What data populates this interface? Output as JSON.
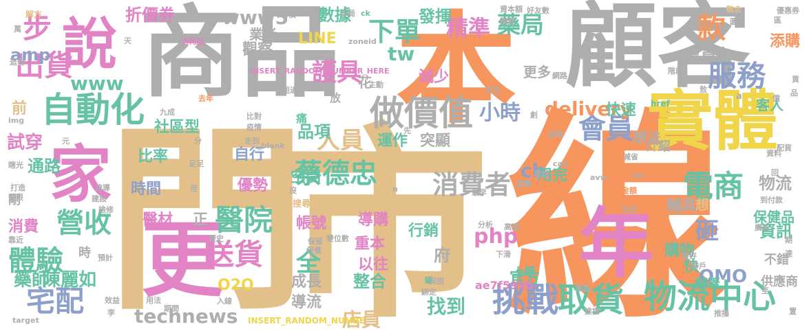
{
  "colors": {
    "tan": "#e3c089",
    "gray": "#aeaeae",
    "orange": "#f6955e",
    "pink": "#e283c5",
    "green": "#66c2a5",
    "yellow": "#f0d54a",
    "blue": "#8da0cb",
    "lime": "#a6d854"
  },
  "words": [
    {
      "text": "門",
      "color": "tan"
    },
    {
      "text": "市",
      "color": "tan"
    },
    {
      "text": "線",
      "color": "orange"
    },
    {
      "text": "商品",
      "color": "gray"
    },
    {
      "text": "本",
      "color": "orange"
    },
    {
      "text": "顧客",
      "color": "gray"
    },
    {
      "text": "更",
      "color": "pink"
    },
    {
      "text": "年",
      "color": "pink"
    },
    {
      "text": "實體",
      "color": "yellow"
    },
    {
      "text": "家",
      "color": "pink"
    },
    {
      "text": "說",
      "color": "pink"
    },
    {
      "text": "自動化",
      "color": "green"
    },
    {
      "text": "服務",
      "color": "blue"
    },
    {
      "text": "做價值",
      "color": "gray"
    },
    {
      "text": "電商",
      "color": "green"
    },
    {
      "text": "物流中心",
      "color": "green"
    },
    {
      "text": "挑戰",
      "color": "blue"
    },
    {
      "text": "取貨",
      "color": "green"
    },
    {
      "text": "蔡德忠",
      "color": "green"
    },
    {
      "text": "送貨",
      "color": "pink"
    },
    {
      "text": "醫院",
      "color": "green"
    },
    {
      "text": "宅配",
      "color": "blue"
    },
    {
      "text": "體驗",
      "color": "green"
    },
    {
      "text": "營收",
      "color": "green"
    },
    {
      "text": "出貨",
      "color": "pink"
    },
    {
      "text": "步",
      "color": "pink"
    },
    {
      "text": "會員",
      "color": "blue"
    },
    {
      "text": "消費者",
      "color": "gray"
    },
    {
      "text": "下單",
      "color": "green"
    },
    {
      "text": "精準",
      "color": "pink"
    },
    {
      "text": "藥局",
      "color": "green"
    },
    {
      "text": "款",
      "color": "orange"
    },
    {
      "text": "護具",
      "color": "pink"
    },
    {
      "text": "人員",
      "color": "tan"
    },
    {
      "text": "小時",
      "color": "blue"
    },
    {
      "text": "www5",
      "color": "gray"
    },
    {
      "text": "www",
      "color": "green"
    },
    {
      "text": "technews",
      "color": "gray"
    },
    {
      "text": "delivery",
      "color": "orange"
    },
    {
      "text": "砸",
      "color": "blue"
    },
    {
      "text": "全",
      "color": "green"
    },
    {
      "text": "物流",
      "color": "gray"
    },
    {
      "text": "資訊",
      "color": "green"
    },
    {
      "text": "O2O",
      "color": "yellow"
    },
    {
      "text": "OMO",
      "color": "blue"
    },
    {
      "text": "店員",
      "color": "tan"
    },
    {
      "text": "找到",
      "color": "green"
    },
    {
      "text": "陳麗如",
      "color": "green"
    },
    {
      "text": "藥師",
      "color": "green"
    },
    {
      "text": "折價券",
      "color": "pink"
    },
    {
      "text": "發揮",
      "color": "green"
    },
    {
      "text": "數據",
      "color": "green"
    },
    {
      "text": "amp",
      "color": "blue"
    },
    {
      "text": "LINE",
      "color": "yellow"
    },
    {
      "text": "cb",
      "color": "blue"
    },
    {
      "text": "php",
      "color": "pink"
    },
    {
      "text": "tw",
      "color": "green"
    },
    {
      "text": "試穿",
      "color": "pink"
    },
    {
      "text": "通路",
      "color": "green"
    },
    {
      "text": "社區型",
      "color": "green"
    },
    {
      "text": "品項",
      "color": "green"
    },
    {
      "text": "突顯",
      "color": "gray"
    },
    {
      "text": "運作",
      "color": "green"
    },
    {
      "text": "用完",
      "color": "green"
    },
    {
      "text": "自行",
      "color": "blue"
    },
    {
      "text": "比率",
      "color": "green"
    },
    {
      "text": "時間",
      "color": "blue"
    },
    {
      "text": "優勢",
      "color": "pink"
    },
    {
      "text": "醫材",
      "color": "pink"
    },
    {
      "text": "帳號",
      "color": "pink"
    },
    {
      "text": "導購",
      "color": "pink"
    },
    {
      "text": "重本",
      "color": "pink"
    },
    {
      "text": "以往",
      "color": "pink"
    },
    {
      "text": "整合",
      "color": "green"
    },
    {
      "text": "成長",
      "color": "gray"
    },
    {
      "text": "導流",
      "color": "gray"
    },
    {
      "text": "行銷",
      "color": "green"
    },
    {
      "text": "府",
      "color": "gray"
    },
    {
      "text": "官方",
      "color": "green"
    },
    {
      "text": "購物",
      "color": "green"
    },
    {
      "text": "快",
      "color": "green"
    },
    {
      "text": "輔具",
      "color": "gray"
    },
    {
      "text": "空間",
      "color": "green"
    },
    {
      "text": "推",
      "color": "tan"
    },
    {
      "text": "正",
      "color": "gray"
    },
    {
      "text": "前",
      "color": "tan"
    },
    {
      "text": "觀察",
      "color": "gray"
    },
    {
      "text": "業者",
      "color": "gray"
    },
    {
      "text": "花",
      "color": "gray"
    },
    {
      "text": "減少",
      "color": "pink"
    },
    {
      "text": "更多",
      "color": "gray"
    },
    {
      "text": "快速",
      "color": "green"
    },
    {
      "text": "會員卡",
      "color": "gray"
    },
    {
      "text": "客人",
      "color": "green"
    },
    {
      "text": "添購",
      "color": "orange"
    },
    {
      "text": "辦法",
      "color": "gray"
    },
    {
      "text": "介紹",
      "color": "gray"
    },
    {
      "text": "想",
      "color": "tan"
    },
    {
      "text": "保健品",
      "color": "green"
    },
    {
      "text": "供應商",
      "color": "gray"
    },
    {
      "text": "不錯",
      "color": "gray"
    },
    {
      "text": "藤蓋",
      "color": "green"
    },
    {
      "text": "上網",
      "color": "green"
    },
    {
      "text": "ae7f5990",
      "color": "pink"
    },
    {
      "text": "剛",
      "color": "gray"
    },
    {
      "text": "時",
      "color": "gray"
    },
    {
      "text": "消費",
      "color": "pink"
    },
    {
      "text": "INSERT_RANDOM_NUMBER_HERE",
      "color": "pink"
    },
    {
      "text": "INSERT_RANDOM_NUMBE",
      "color": "yellow"
    },
    {
      "text": "解方",
      "color": "tan"
    },
    {
      "text": "習慣",
      "color": "gray"
    },
    {
      "text": "布局",
      "color": "gray"
    },
    {
      "text": "ck",
      "color": "green"
    },
    {
      "text": "資本額",
      "color": "gray"
    },
    {
      "text": "好友數",
      "color": "gray"
    },
    {
      "text": "融合",
      "color": "tan"
    },
    {
      "text": "優惠券",
      "color": "gray"
    },
    {
      "text": "zoneid",
      "color": "gray"
    },
    {
      "text": "購買",
      "color": "gray"
    },
    {
      "text": "消耗品",
      "color": "pink"
    },
    {
      "text": "超過",
      "color": "gray"
    },
    {
      "text": "痛",
      "color": "green"
    },
    {
      "text": "放",
      "color": "gray"
    },
    {
      "text": "比對",
      "color": "gray"
    },
    {
      "text": "疫情",
      "color": "gray"
    },
    {
      "text": "走到",
      "color": "gray"
    },
    {
      "text": "_blank",
      "color": "gray"
    },
    {
      "text": "去年",
      "color": "orange"
    },
    {
      "text": "創",
      "color": "gray"
    },
    {
      "text": "身為",
      "color": "gray"
    },
    {
      "text": "商城",
      "color": "gray"
    },
    {
      "text": "虛實",
      "color": "gray"
    },
    {
      "text": "金額",
      "color": "orange"
    },
    {
      "text": "方式",
      "color": "gray"
    },
    {
      "text": "src",
      "color": "gray"
    },
    {
      "text": "avw",
      "color": "gray"
    },
    {
      "text": "href",
      "color": "green"
    },
    {
      "text": "call",
      "color": "gray"
    },
    {
      "text": "交叉",
      "color": "gray"
    },
    {
      "text": "網路",
      "color": "gray"
    },
    {
      "text": "階段",
      "color": "gray"
    },
    {
      "text": "a",
      "color": "gray"
    },
    {
      "text": "億",
      "color": "gray"
    },
    {
      "text": "資料",
      "color": "gray"
    },
    {
      "text": "配貨",
      "color": "gray"
    },
    {
      "text": "廣告",
      "color": "gray"
    },
    {
      "text": "做好",
      "color": "gray"
    },
    {
      "text": "客戶",
      "color": "gray"
    },
    {
      "text": "高達",
      "color": "gray"
    },
    {
      "text": "分析",
      "color": "gray"
    },
    {
      "text": "下滑",
      "color": "gray"
    },
    {
      "text": "雙位數",
      "color": "gray"
    },
    {
      "text": "保留",
      "color": "gray"
    },
    {
      "text": "歷史",
      "color": "gray"
    },
    {
      "text": "保養",
      "color": "gray"
    },
    {
      "text": "預計",
      "color": "gray"
    },
    {
      "text": "入線",
      "color": "gray"
    },
    {
      "text": "綁定",
      "color": "gray"
    },
    {
      "text": "推播",
      "color": "gray"
    },
    {
      "text": "產品",
      "color": "gray"
    },
    {
      "text": "推播",
      "color": "gray"
    },
    {
      "text": "期間",
      "color": "gray"
    },
    {
      "text": "用法",
      "color": "gray"
    },
    {
      "text": "效益",
      "color": "gray"
    },
    {
      "text": "target",
      "color": "gray"
    },
    {
      "text": "img",
      "color": "gray"
    },
    {
      "text": "瞎光",
      "color": "gray"
    },
    {
      "text": "打造",
      "color": "gray"
    },
    {
      "text": "受限",
      "color": "gray"
    },
    {
      "text": "靠近",
      "color": "gray"
    },
    {
      "text": "流導",
      "color": "gray"
    },
    {
      "text": "建設",
      "color": "gray"
    },
    {
      "text": "檢修",
      "color": "gray"
    },
    {
      "text": "九成",
      "color": "gray"
    },
    {
      "text": "逛街",
      "color": "gray"
    },
    {
      "text": "主動",
      "color": "gray"
    },
    {
      "text": "最早",
      "color": "gray"
    },
    {
      "text": "搜尋",
      "color": "tan"
    },
    {
      "text": "沒",
      "color": "gray"
    },
    {
      "text": "倍",
      "color": "gray"
    },
    {
      "text": "足足",
      "color": "gray"
    },
    {
      "text": "罐",
      "color": "green"
    },
    {
      "text": "至",
      "color": "gray"
    },
    {
      "text": "到付款",
      "color": "gray"
    },
    {
      "text": "減省",
      "color": "gray"
    },
    {
      "text": "回",
      "color": "gray"
    },
    {
      "text": "天",
      "color": "gray"
    },
    {
      "text": "分",
      "color": "gray"
    },
    {
      "text": "元",
      "color": "gray"
    },
    {
      "text": "n",
      "color": "gray"
    },
    {
      "text": "先",
      "color": "gray"
    },
    {
      "text": "萬",
      "color": "gray"
    },
    {
      "text": "李",
      "color": "gray"
    },
    {
      "text": "期",
      "color": "gray"
    },
    {
      "text": "達",
      "color": "gray"
    },
    {
      "text": "敖",
      "color": "gray"
    },
    {
      "text": "置",
      "color": "gray"
    },
    {
      "text": "貢",
      "color": "gray"
    },
    {
      "text": "品",
      "color": "gray"
    },
    {
      "text": "區",
      "color": "gray"
    },
    {
      "text": "圓",
      "color": "gray"
    },
    {
      "text": "保固",
      "color": "gray"
    }
  ]
}
